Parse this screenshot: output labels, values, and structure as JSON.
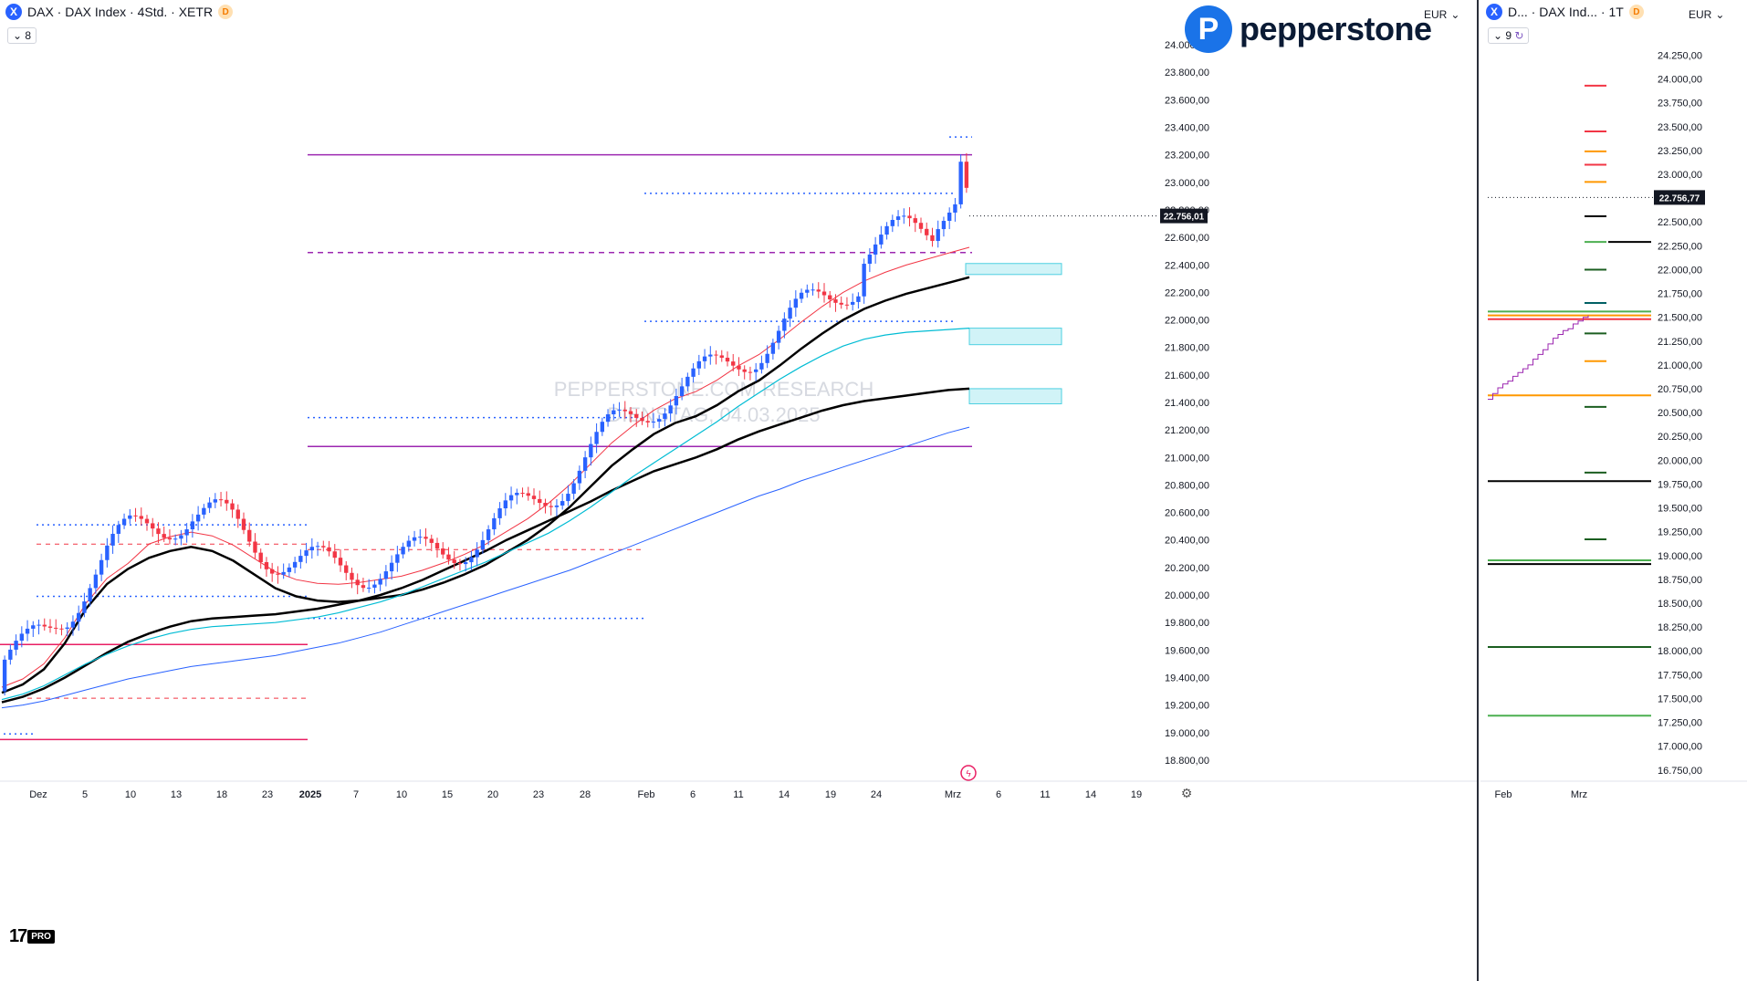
{
  "left": {
    "header": {
      "symbol_icon": "X",
      "title": "DAX · DAX Index · 4Std. · XETR",
      "badge": "D",
      "sub": "8"
    },
    "currency": "EUR",
    "logo_text": "pepperstone",
    "watermark_line1": "PEPPERSTONE.COM RESEARCH",
    "watermark_line2": "DIENSTAG, 04.03.2025",
    "price_label": "22.756,01",
    "price_axis": [
      "24.000,00",
      "23.800,00",
      "23.600,00",
      "23.400,00",
      "23.200,00",
      "23.000,00",
      "22.800,00",
      "22.600,00",
      "22.400,00",
      "22.200,00",
      "22.000,00",
      "21.800,00",
      "21.600,00",
      "21.400,00",
      "21.200,00",
      "21.000,00",
      "20.800,00",
      "20.600,00",
      "20.400,00",
      "20.200,00",
      "20.000,00",
      "19.800,00",
      "19.600,00",
      "19.400,00",
      "19.200,00",
      "19.000,00",
      "18.800,00"
    ],
    "time_axis": [
      "Dez",
      "5",
      "10",
      "13",
      "18",
      "23",
      "2025",
      "7",
      "10",
      "15",
      "20",
      "23",
      "28",
      "Feb",
      "6",
      "11",
      "14",
      "19",
      "24",
      "Mrz",
      "6",
      "11",
      "14",
      "19"
    ],
    "tv_mark": "17",
    "tv_pro": "PRO"
  },
  "right": {
    "header": {
      "symbol_icon": "X",
      "title": "D... · DAX Ind... · 1T",
      "badge": "D",
      "sub": "9"
    },
    "currency": "EUR",
    "price_label": "22.756,77",
    "price_axis": [
      "24.250,00",
      "24.000,00",
      "23.750,00",
      "23.500,00",
      "23.250,00",
      "23.000,00",
      "22.750,00",
      "22.500,00",
      "22.250,00",
      "22.000,00",
      "21.750,00",
      "21.500,00",
      "21.250,00",
      "21.000,00",
      "20.750,00",
      "20.500,00",
      "20.250,00",
      "20.000,00",
      "19.750,00",
      "19.500,00",
      "19.250,00",
      "19.000,00",
      "18.750,00",
      "18.500,00",
      "18.250,00",
      "18.000,00",
      "17.750,00",
      "17.500,00",
      "17.250,00",
      "17.000,00",
      "16.750,00"
    ],
    "time_axis": [
      "Feb",
      "Mrz"
    ]
  },
  "colors": {
    "up": "#2962ff",
    "down": "#f23645",
    "magenta": "#9c27b0",
    "blue_dot": "#2962ff",
    "ema_red": "#f23645",
    "ema_cyan": "#00bcd4",
    "ema_blue": "#2962ff",
    "ema_black": "#000000",
    "zone": "#b2ebf2"
  },
  "chart_data": [
    {
      "type": "candlestick",
      "title": "DAX · DAX Index · 4Std. · XETR",
      "last_price": 22756.01,
      "ylim": [
        18700,
        24100
      ],
      "levels": {
        "magenta_solid": [
          23200,
          21080,
          19640,
          18950
        ],
        "magenta_dashed": [
          22490
        ],
        "blue_dotted": [
          22920,
          21990,
          21290,
          20510,
          19990,
          19830
        ],
        "red_dashed": [
          20370,
          20330,
          19250
        ]
      },
      "demand_zones": [
        [
          22330,
          22410
        ],
        [
          21820,
          21940
        ],
        [
          21390,
          21500
        ]
      ],
      "series": [
        {
          "name": "ema_black_fast",
          "values": [
            19290,
            19350,
            19460,
            19650,
            19900,
            20080,
            20190,
            20270,
            20320,
            20350,
            20320,
            20250,
            20150,
            20050,
            19990,
            19960,
            19950,
            19960,
            19980,
            20000,
            20040,
            20090,
            20150,
            20220,
            20310,
            20400,
            20510,
            20640,
            20790,
            20940,
            21060,
            21170,
            21250,
            21300,
            21380,
            21480,
            21560,
            21670,
            21790,
            21900,
            22000,
            22080,
            22140,
            22190,
            22230,
            22270,
            22310
          ]
        },
        {
          "name": "ema_black_slow",
          "values": [
            19220,
            19260,
            19320,
            19400,
            19490,
            19580,
            19660,
            19720,
            19770,
            19810,
            19830,
            19840,
            19850,
            19860,
            19880,
            19900,
            19930,
            19960,
            20000,
            20050,
            20110,
            20180,
            20250,
            20320,
            20400,
            20470,
            20540,
            20610,
            20680,
            20760,
            20830,
            20900,
            20950,
            21000,
            21060,
            21130,
            21190,
            21240,
            21290,
            21340,
            21380,
            21410,
            21430,
            21450,
            21470,
            21490,
            21500
          ]
        },
        {
          "name": "ema_cyan",
          "values": [
            19240,
            19280,
            19340,
            19420,
            19500,
            19570,
            19630,
            19680,
            19720,
            19750,
            19770,
            19780,
            19790,
            19800,
            19820,
            19840,
            19870,
            19910,
            19950,
            20000,
            20060,
            20120,
            20180,
            20240,
            20310,
            20380,
            20450,
            20540,
            20640,
            20750,
            20860,
            20960,
            21060,
            21160,
            21260,
            21370,
            21470,
            21570,
            21660,
            21740,
            21810,
            21860,
            21890,
            21910,
            21920,
            21930,
            21940
          ]
        },
        {
          "name": "ema_blue",
          "values": [
            19180,
            19200,
            19230,
            19270,
            19310,
            19350,
            19390,
            19420,
            19450,
            19480,
            19500,
            19520,
            19540,
            19560,
            19590,
            19620,
            19650,
            19690,
            19730,
            19780,
            19830,
            19880,
            19930,
            19980,
            20030,
            20080,
            20130,
            20180,
            20240,
            20300,
            20360,
            20420,
            20480,
            20540,
            20600,
            20660,
            20720,
            20770,
            20830,
            20880,
            20930,
            20980,
            21030,
            21080,
            21130,
            21180,
            21220
          ]
        }
      ]
    },
    {
      "type": "step",
      "title": "D... · DAX Ind... · 1T",
      "last_price": 22756.77,
      "ylim": [
        16700,
        24350
      ],
      "series": [
        {
          "name": "price",
          "values": [
            20640,
            20700,
            20760,
            20800,
            20830,
            20880,
            20920,
            20960,
            21000,
            21060,
            21110,
            21160,
            21220,
            21280,
            21320,
            21360,
            21380,
            21430,
            21460,
            21500,
            21520
          ]
        }
      ],
      "levels": [
        {
          "value": 23930,
          "color": "#f23645",
          "type": "segment"
        },
        {
          "value": 23450,
          "color": "#f23645",
          "type": "segment"
        },
        {
          "value": 23240,
          "color": "#ff9800",
          "type": "segment"
        },
        {
          "value": 23100,
          "color": "#f23645",
          "type": "segment"
        },
        {
          "value": 22920,
          "color": "#ff9800",
          "type": "segment"
        },
        {
          "value": 22560,
          "color": "#000000",
          "type": "segment"
        },
        {
          "value": 22290,
          "color": "#000000",
          "type": "segment"
        },
        {
          "value": 22290,
          "color": "#4caf50",
          "type": "segment"
        },
        {
          "value": 22000,
          "color": "#1b5e20",
          "type": "segment"
        },
        {
          "value": 21650,
          "color": "#006064",
          "type": "segment"
        },
        {
          "value": 21560,
          "color": "#4caf50",
          "type": "full"
        },
        {
          "value": 21520,
          "color": "#ff9800",
          "type": "full"
        },
        {
          "value": 21480,
          "color": "#f23645",
          "type": "full"
        },
        {
          "value": 21330,
          "color": "#1b5e20",
          "type": "segment"
        },
        {
          "value": 21040,
          "color": "#ff9800",
          "type": "segment"
        },
        {
          "value": 20680,
          "color": "#ff9800",
          "type": "full"
        },
        {
          "value": 20560,
          "color": "#1b5e20",
          "type": "segment"
        },
        {
          "value": 19870,
          "color": "#1b5e20",
          "type": "segment"
        },
        {
          "value": 19780,
          "color": "#000000",
          "type": "full"
        },
        {
          "value": 19170,
          "color": "#1b5e20",
          "type": "segment"
        },
        {
          "value": 18950,
          "color": "#4caf50",
          "type": "full"
        },
        {
          "value": 18910,
          "color": "#000000",
          "type": "full"
        },
        {
          "value": 18040,
          "color": "#1b5e20",
          "type": "full"
        },
        {
          "value": 17320,
          "color": "#4caf50",
          "type": "full"
        }
      ]
    }
  ]
}
